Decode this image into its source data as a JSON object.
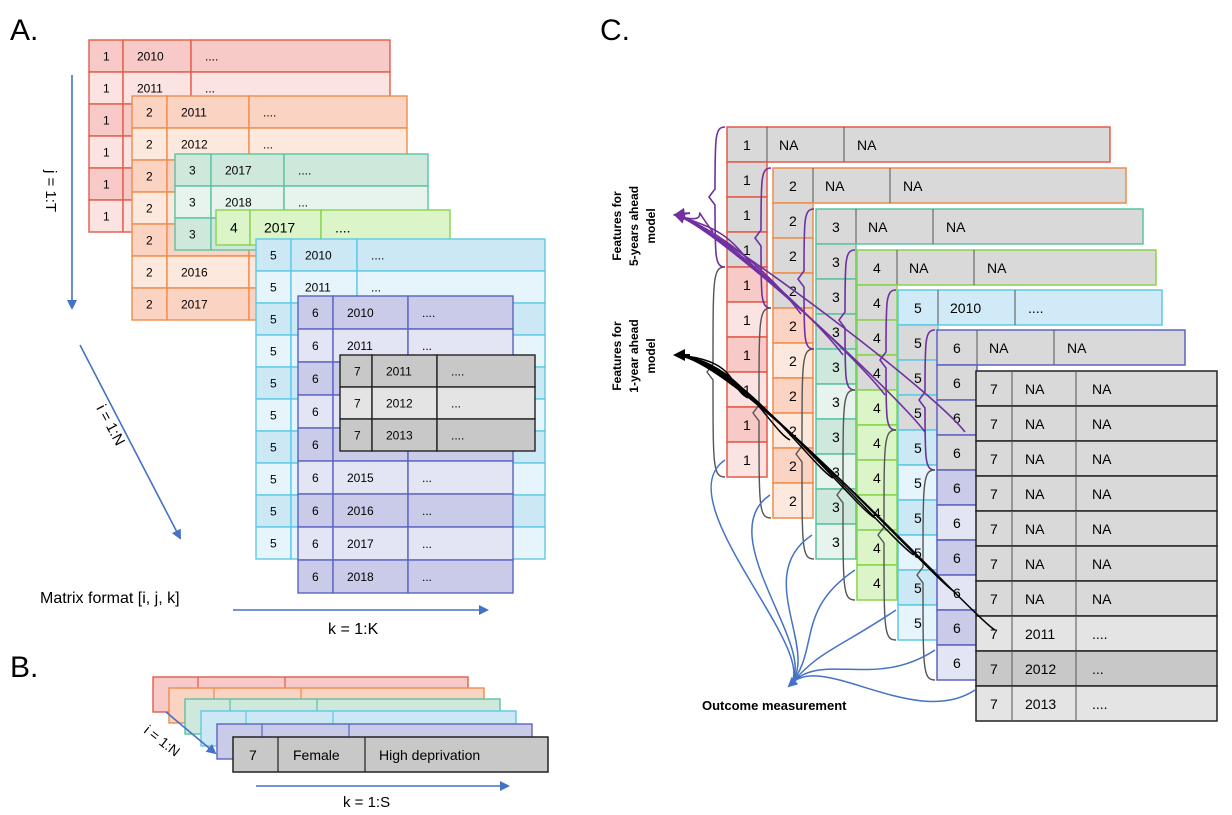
{
  "panels": {
    "a": {
      "letter": "A.",
      "j_axis": "j = 1:T",
      "i_axis": "i = 1:N",
      "k_axis": "k = 1:K",
      "matrix_label": "Matrix format [i, j, k]",
      "layers": [
        {
          "fill": "#f7c9c7",
          "alt": "#fbe3e2",
          "stroke": "#e45a4a",
          "rows": [
            [
              "1",
              "2010",
              "...."
            ],
            [
              "1",
              "2011",
              "..."
            ],
            [
              "1",
              "",
              ""
            ],
            [
              "1",
              "",
              ""
            ],
            [
              "1",
              "",
              ""
            ],
            [
              "1",
              "",
              ""
            ]
          ]
        },
        {
          "fill": "#fbd3c3",
          "alt": "#fde8de",
          "stroke": "#f08c4a",
          "rows": [
            [
              "2",
              "2011",
              "...."
            ],
            [
              "2",
              "2012",
              "..."
            ],
            [
              "2",
              "",
              ""
            ],
            [
              "2",
              "",
              ""
            ],
            [
              "2",
              "",
              ""
            ],
            [
              "2",
              "2016",
              "..."
            ],
            [
              "2",
              "2017",
              "..."
            ]
          ]
        },
        {
          "fill": "#cfe8dc",
          "alt": "#e6f4ed",
          "stroke": "#5cc2a3",
          "rows": [
            [
              "3",
              "2017",
              "...."
            ],
            [
              "3",
              "2018",
              "..."
            ],
            [
              "3",
              "",
              ""
            ]
          ]
        },
        {
          "fill": "#dcf5c8",
          "alt": "#dcf5c8",
          "stroke": "#86d44a",
          "rows": [
            [
              "4",
              "2017",
              "...."
            ]
          ]
        },
        {
          "fill": "#cde8f5",
          "alt": "#e6f4fb",
          "stroke": "#5fc8e6",
          "rows": [
            [
              "5",
              "2010",
              "...."
            ],
            [
              "5",
              "2011",
              "..."
            ],
            [
              "5",
              "",
              ""
            ],
            [
              "5",
              "",
              ""
            ],
            [
              "5",
              "",
              ""
            ],
            [
              "5",
              "",
              ""
            ],
            [
              "5",
              "",
              ""
            ],
            [
              "5",
              "",
              ""
            ],
            [
              "5",
              "",
              ""
            ],
            [
              "5",
              "",
              ""
            ]
          ]
        },
        {
          "fill": "#c9cbe9",
          "alt": "#e4e5f4",
          "stroke": "#5a64c0",
          "rows": [
            [
              "6",
              "2010",
              "...."
            ],
            [
              "6",
              "2011",
              "..."
            ],
            [
              "6",
              "",
              ""
            ],
            [
              "6",
              "",
              ""
            ],
            [
              "6",
              "",
              ""
            ],
            [
              "6",
              "2015",
              "..."
            ],
            [
              "6",
              "2016",
              "..."
            ],
            [
              "6",
              "2017",
              "..."
            ],
            [
              "6",
              "2018",
              "..."
            ]
          ]
        },
        {
          "fill": "#c8c8c8",
          "alt": "#e4e4e4",
          "stroke": "#222222",
          "rows": [
            [
              "7",
              "2011",
              "...."
            ],
            [
              "7",
              "2012",
              "..."
            ],
            [
              "7",
              "2013",
              "...."
            ]
          ]
        }
      ]
    },
    "b": {
      "letter": "B.",
      "i_axis": "i = 1:N",
      "k_axis": "k = 1:S",
      "front_row": [
        "7",
        "Female",
        "High deprivation"
      ]
    },
    "c": {
      "letter": "C.",
      "label_5yr": [
        "Features for",
        "5-years ahead",
        "model"
      ],
      "label_1yr": [
        "Features  for",
        "1-year ahead",
        "model"
      ],
      "outcome": "Outcome measurement",
      "layer_headers": [
        [
          "1",
          "NA",
          "NA"
        ],
        [
          "2",
          "NA",
          "NA"
        ],
        [
          "3",
          "NA",
          "NA"
        ],
        [
          "4",
          "NA",
          "NA"
        ],
        [
          "5",
          "2010",
          "...."
        ],
        [
          "6",
          "NA",
          "NA"
        ]
      ],
      "side_ids": [
        "1",
        "2",
        "3",
        "4",
        "5",
        "6"
      ],
      "front_rows": [
        [
          "7",
          "NA",
          "NA"
        ],
        [
          "7",
          "NA",
          "NA"
        ],
        [
          "7",
          "NA",
          "NA"
        ],
        [
          "7",
          "NA",
          "NA"
        ],
        [
          "7",
          "NA",
          "NA"
        ],
        [
          "7",
          "NA",
          "NA"
        ],
        [
          "7",
          "NA",
          "NA"
        ],
        [
          "7",
          "2011",
          "...."
        ],
        [
          "7",
          "2012",
          "..."
        ],
        [
          "7",
          "2013",
          "...."
        ]
      ],
      "colors": {
        "purple": "#7030a0",
        "black": "#000000",
        "blue": "#4472c4"
      }
    }
  }
}
